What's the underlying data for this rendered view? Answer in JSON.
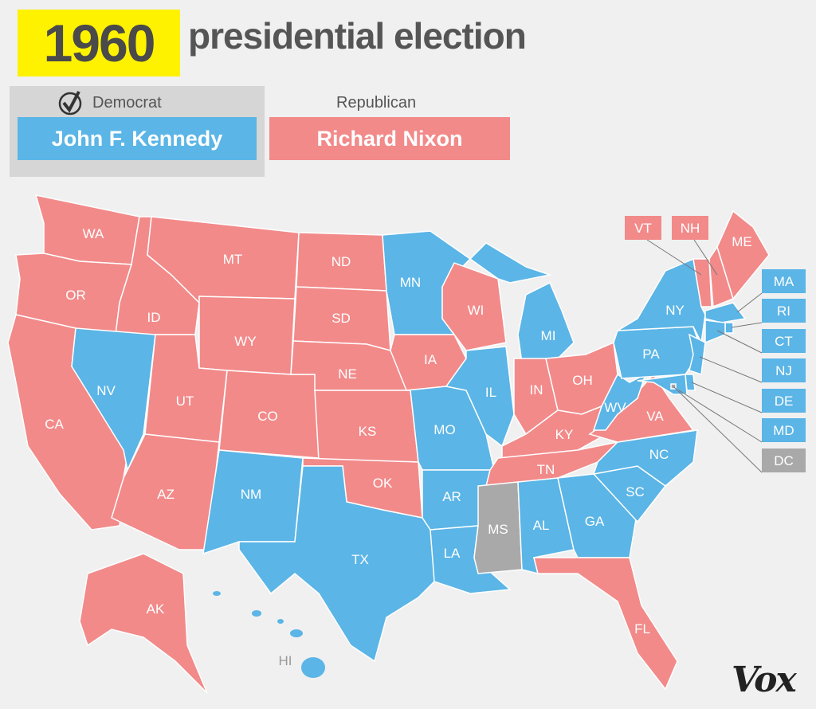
{
  "header": {
    "year": "1960",
    "title": "presidential election"
  },
  "legend": {
    "democrat": {
      "party": "Democrat",
      "candidate": "John F. Kennedy",
      "winner": true,
      "icon": "checkmark-circle-icon"
    },
    "republican": {
      "party": "Republican",
      "candidate": "Richard Nixon"
    }
  },
  "colors": {
    "D": "#5bb5e6",
    "R": "#f28a8a",
    "U": "#a9a9a9"
  },
  "states": [
    {
      "abbr": "WA",
      "winner": "R"
    },
    {
      "abbr": "OR",
      "winner": "R"
    },
    {
      "abbr": "CA",
      "winner": "R"
    },
    {
      "abbr": "ID",
      "winner": "R"
    },
    {
      "abbr": "NV",
      "winner": "D"
    },
    {
      "abbr": "MT",
      "winner": "R"
    },
    {
      "abbr": "WY",
      "winner": "R"
    },
    {
      "abbr": "UT",
      "winner": "R"
    },
    {
      "abbr": "AZ",
      "winner": "R"
    },
    {
      "abbr": "CO",
      "winner": "R"
    },
    {
      "abbr": "NM",
      "winner": "D"
    },
    {
      "abbr": "ND",
      "winner": "R"
    },
    {
      "abbr": "SD",
      "winner": "R"
    },
    {
      "abbr": "NE",
      "winner": "R"
    },
    {
      "abbr": "KS",
      "winner": "R"
    },
    {
      "abbr": "OK",
      "winner": "R"
    },
    {
      "abbr": "TX",
      "winner": "D"
    },
    {
      "abbr": "MN",
      "winner": "D"
    },
    {
      "abbr": "IA",
      "winner": "R"
    },
    {
      "abbr": "MO",
      "winner": "D"
    },
    {
      "abbr": "AR",
      "winner": "D"
    },
    {
      "abbr": "LA",
      "winner": "D"
    },
    {
      "abbr": "WI",
      "winner": "R"
    },
    {
      "abbr": "IL",
      "winner": "D"
    },
    {
      "abbr": "MI",
      "winner": "D"
    },
    {
      "abbr": "IN",
      "winner": "R"
    },
    {
      "abbr": "OH",
      "winner": "R"
    },
    {
      "abbr": "KY",
      "winner": "R"
    },
    {
      "abbr": "TN",
      "winner": "R"
    },
    {
      "abbr": "MS",
      "winner": "U"
    },
    {
      "abbr": "AL",
      "winner": "D"
    },
    {
      "abbr": "GA",
      "winner": "D"
    },
    {
      "abbr": "FL",
      "winner": "R"
    },
    {
      "abbr": "SC",
      "winner": "D"
    },
    {
      "abbr": "NC",
      "winner": "D"
    },
    {
      "abbr": "VA",
      "winner": "R"
    },
    {
      "abbr": "WV",
      "winner": "D"
    },
    {
      "abbr": "PA",
      "winner": "D"
    },
    {
      "abbr": "NY",
      "winner": "D"
    },
    {
      "abbr": "VT",
      "winner": "R"
    },
    {
      "abbr": "NH",
      "winner": "R"
    },
    {
      "abbr": "ME",
      "winner": "R"
    },
    {
      "abbr": "MA",
      "winner": "D"
    },
    {
      "abbr": "RI",
      "winner": "D"
    },
    {
      "abbr": "CT",
      "winner": "D"
    },
    {
      "abbr": "NJ",
      "winner": "D"
    },
    {
      "abbr": "DE",
      "winner": "D"
    },
    {
      "abbr": "MD",
      "winner": "D"
    },
    {
      "abbr": "DC",
      "winner": "U"
    },
    {
      "abbr": "AK",
      "winner": "R"
    },
    {
      "abbr": "HI",
      "winner": "D"
    }
  ],
  "logo": "Vox"
}
